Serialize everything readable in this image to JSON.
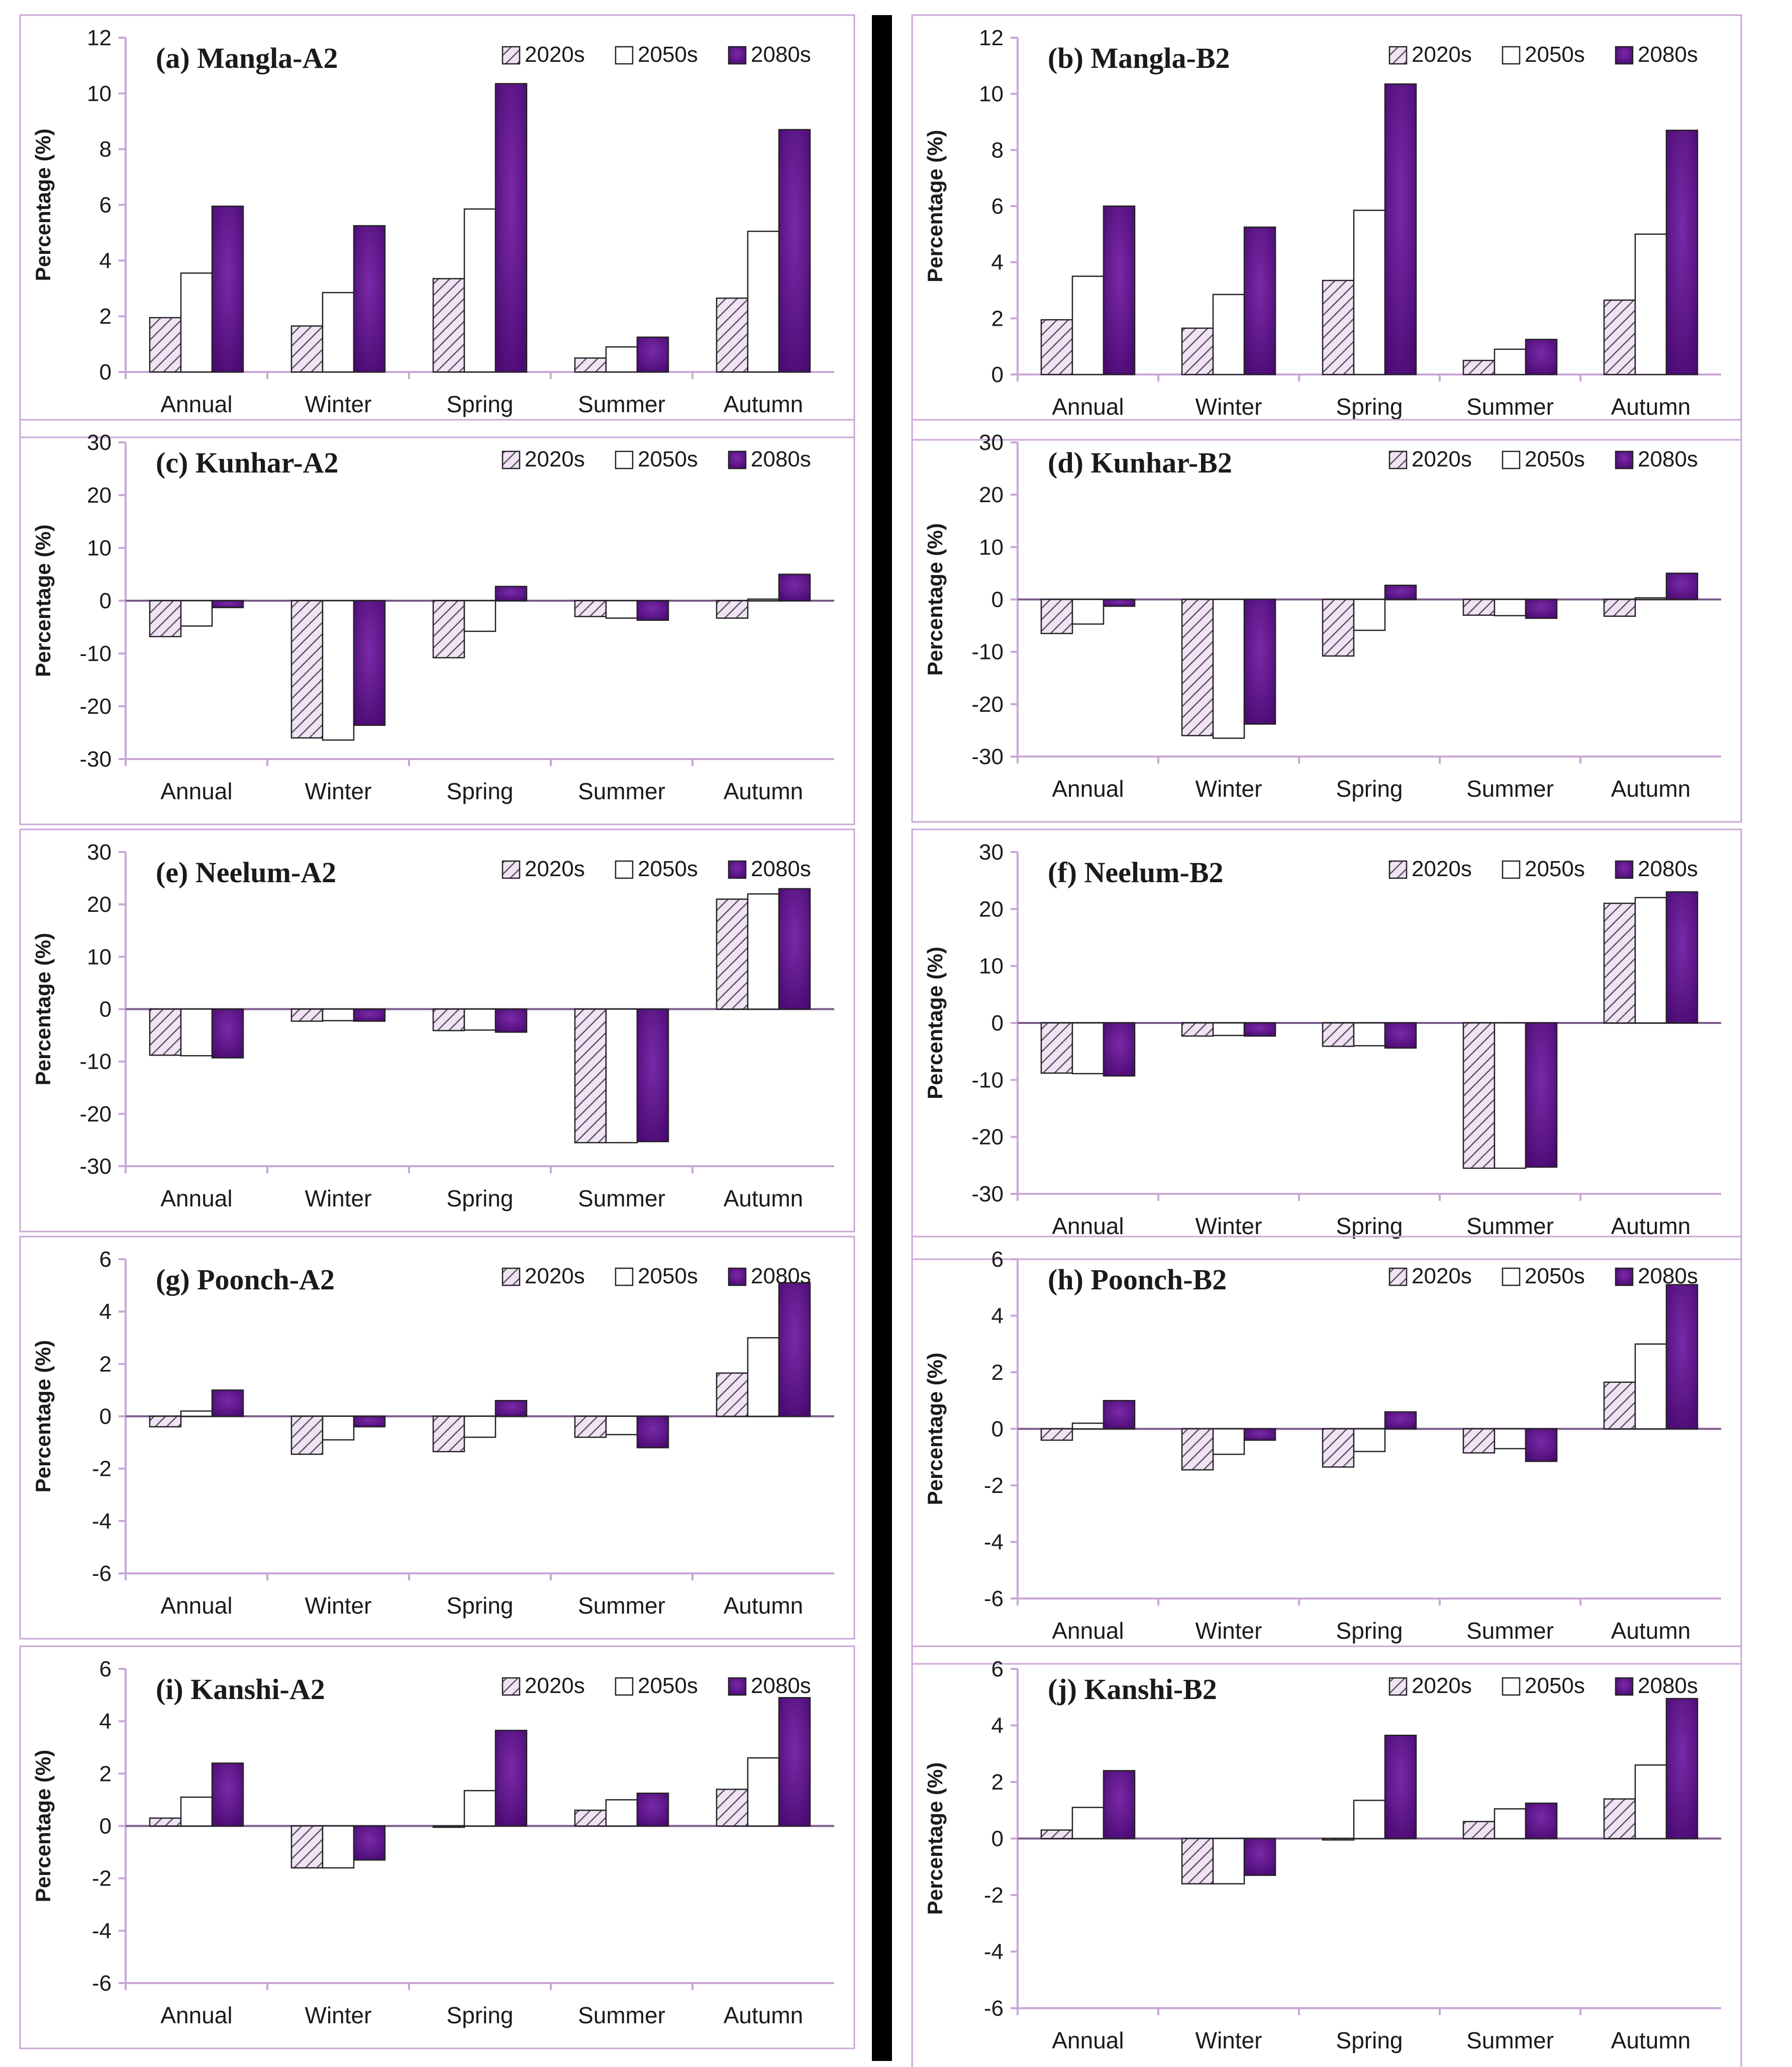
{
  "colors": {
    "frame": "#c9a6d6",
    "grid_zero": "#7b5a8a",
    "bar_2080s": "#5b0e86",
    "bar_2050s": "#ffffff",
    "bar_2020s_hatch": "#555555",
    "bar_2020s_bg": "#f1e2f6",
    "divider": "#000000"
  },
  "chart_data": [
    {
      "id": "a",
      "type": "bar",
      "title": "(a) Mangla-A2",
      "ylabel": "Percentage (%)",
      "ylim": [
        0,
        12
      ],
      "yticks": [
        0,
        2,
        4,
        6,
        8,
        10,
        12
      ],
      "categories": [
        "Annual",
        "Winter",
        "Spring",
        "Summer",
        "Autumn"
      ],
      "series": [
        {
          "name": "2020s",
          "values": [
            1.95,
            1.65,
            3.35,
            0.5,
            2.65
          ]
        },
        {
          "name": "2050s",
          "values": [
            3.55,
            2.85,
            5.85,
            0.9,
            5.05
          ]
        },
        {
          "name": "2080s",
          "values": [
            5.95,
            5.25,
            10.35,
            1.25,
            8.7
          ]
        }
      ]
    },
    {
      "id": "b",
      "type": "bar",
      "title": "(b) Mangla-B2",
      "ylabel": "Percentage (%)",
      "ylim": [
        0,
        12
      ],
      "yticks": [
        0,
        2,
        4,
        6,
        8,
        10,
        12
      ],
      "categories": [
        "Annual",
        "Winter",
        "Spring",
        "Summer",
        "Autumn"
      ],
      "series": [
        {
          "name": "2020s",
          "values": [
            1.95,
            1.65,
            3.35,
            0.5,
            2.65
          ]
        },
        {
          "name": "2050s",
          "values": [
            3.5,
            2.85,
            5.85,
            0.9,
            5.0
          ]
        },
        {
          "name": "2080s",
          "values": [
            6.0,
            5.25,
            10.35,
            1.25,
            8.7
          ]
        }
      ]
    },
    {
      "id": "c",
      "type": "bar",
      "title": "(c) Kunhar-A2",
      "ylabel": "Percentage (%)",
      "ylim": [
        -30,
        30
      ],
      "yticks": [
        -30,
        -20,
        -10,
        0,
        10,
        20,
        30
      ],
      "categories": [
        "Annual",
        "Winter",
        "Spring",
        "Summer",
        "Autumn"
      ],
      "series": [
        {
          "name": "2020s",
          "values": [
            -6.8,
            -26.0,
            -10.8,
            -3.0,
            -3.3
          ]
        },
        {
          "name": "2050s",
          "values": [
            -4.8,
            -26.4,
            -5.8,
            -3.3,
            0.3
          ]
        },
        {
          "name": "2080s",
          "values": [
            -1.3,
            -23.6,
            2.7,
            -3.7,
            5.0
          ]
        }
      ]
    },
    {
      "id": "d",
      "type": "bar",
      "title": "(d) Kunhar-B2",
      "ylabel": "Percentage (%)",
      "ylim": [
        -30,
        30
      ],
      "yticks": [
        -30,
        -20,
        -10,
        0,
        10,
        20,
        30
      ],
      "categories": [
        "Annual",
        "Winter",
        "Spring",
        "Summer",
        "Autumn"
      ],
      "series": [
        {
          "name": "2020s",
          "values": [
            -6.5,
            -26.0,
            -10.8,
            -3.0,
            -3.2
          ]
        },
        {
          "name": "2050s",
          "values": [
            -4.7,
            -26.5,
            -5.9,
            -3.1,
            0.3
          ]
        },
        {
          "name": "2080s",
          "values": [
            -1.3,
            -23.8,
            2.7,
            -3.6,
            5.0
          ]
        }
      ]
    },
    {
      "id": "e",
      "type": "bar",
      "title": "(e) Neelum-A2",
      "ylabel": "Percentage (%)",
      "ylim": [
        -30,
        30
      ],
      "yticks": [
        -30,
        -20,
        -10,
        0,
        10,
        20,
        30
      ],
      "categories": [
        "Annual",
        "Winter",
        "Spring",
        "Summer",
        "Autumn"
      ],
      "series": [
        {
          "name": "2020s",
          "values": [
            -8.8,
            -2.3,
            -4.1,
            -25.5,
            21.0
          ]
        },
        {
          "name": "2050s",
          "values": [
            -8.9,
            -2.2,
            -4.0,
            -25.5,
            22.0
          ]
        },
        {
          "name": "2080s",
          "values": [
            -9.3,
            -2.3,
            -4.4,
            -25.3,
            23.0
          ]
        }
      ]
    },
    {
      "id": "f",
      "type": "bar",
      "title": "(f) Neelum-B2",
      "ylabel": "Percentage (%)",
      "ylim": [
        -30,
        30
      ],
      "yticks": [
        -30,
        -20,
        -10,
        0,
        10,
        20,
        30
      ],
      "categories": [
        "Annual",
        "Winter",
        "Spring",
        "Summer",
        "Autumn"
      ],
      "series": [
        {
          "name": "2020s",
          "values": [
            -8.8,
            -2.3,
            -4.1,
            -25.5,
            21.0
          ]
        },
        {
          "name": "2050s",
          "values": [
            -8.9,
            -2.2,
            -4.0,
            -25.5,
            22.0
          ]
        },
        {
          "name": "2080s",
          "values": [
            -9.3,
            -2.3,
            -4.4,
            -25.3,
            23.0
          ]
        }
      ]
    },
    {
      "id": "g",
      "type": "bar",
      "title": "(g) Poonch-A2",
      "ylabel": "Percentage (%)",
      "ylim": [
        -6,
        6
      ],
      "yticks": [
        -6,
        -4,
        -2,
        0,
        2,
        4,
        6
      ],
      "categories": [
        "Annual",
        "Winter",
        "Spring",
        "Summer",
        "Autumn"
      ],
      "series": [
        {
          "name": "2020s",
          "values": [
            -0.4,
            -1.45,
            -1.35,
            -0.8,
            1.65
          ]
        },
        {
          "name": "2050s",
          "values": [
            0.2,
            -0.9,
            -0.8,
            -0.7,
            3.0
          ]
        },
        {
          "name": "2080s",
          "values": [
            1.0,
            -0.4,
            0.6,
            -1.2,
            5.1
          ]
        }
      ]
    },
    {
      "id": "h",
      "type": "bar",
      "title": "(h) Poonch-B2",
      "ylabel": "Percentage (%)",
      "ylim": [
        -6,
        6
      ],
      "yticks": [
        -6,
        -4,
        -2,
        0,
        2,
        4,
        6
      ],
      "categories": [
        "Annual",
        "Winter",
        "Spring",
        "Summer",
        "Autumn"
      ],
      "series": [
        {
          "name": "2020s",
          "values": [
            -0.4,
            -1.45,
            -1.35,
            -0.85,
            1.65
          ]
        },
        {
          "name": "2050s",
          "values": [
            0.2,
            -0.9,
            -0.8,
            -0.7,
            3.0
          ]
        },
        {
          "name": "2080s",
          "values": [
            1.0,
            -0.4,
            0.6,
            -1.15,
            5.1
          ]
        }
      ]
    },
    {
      "id": "i",
      "type": "bar",
      "title": "(i) Kanshi-A2",
      "ylabel": "Percentage (%)",
      "ylim": [
        -6,
        6
      ],
      "yticks": [
        -6,
        -4,
        -2,
        0,
        2,
        4,
        6
      ],
      "categories": [
        "Annual",
        "Winter",
        "Spring",
        "Summer",
        "Autumn"
      ],
      "series": [
        {
          "name": "2020s",
          "values": [
            0.3,
            -1.6,
            -0.05,
            0.6,
            1.4
          ]
        },
        {
          "name": "2050s",
          "values": [
            1.1,
            -1.6,
            1.35,
            1.0,
            2.6
          ]
        },
        {
          "name": "2080s",
          "values": [
            2.4,
            -1.3,
            3.65,
            1.25,
            4.9
          ]
        }
      ]
    },
    {
      "id": "j",
      "type": "bar",
      "title": "(j) Kanshi-B2",
      "ylabel": "Percentage (%)",
      "ylim": [
        -6,
        6
      ],
      "yticks": [
        -6,
        -4,
        -2,
        0,
        2,
        4,
        6
      ],
      "categories": [
        "Annual",
        "Winter",
        "Spring",
        "Summer",
        "Autumn"
      ],
      "series": [
        {
          "name": "2020s",
          "values": [
            0.3,
            -1.6,
            -0.05,
            0.6,
            1.4
          ]
        },
        {
          "name": "2050s",
          "values": [
            1.1,
            -1.6,
            1.35,
            1.05,
            2.6
          ]
        },
        {
          "name": "2080s",
          "values": [
            2.4,
            -1.3,
            3.65,
            1.25,
            4.95
          ]
        }
      ]
    }
  ]
}
